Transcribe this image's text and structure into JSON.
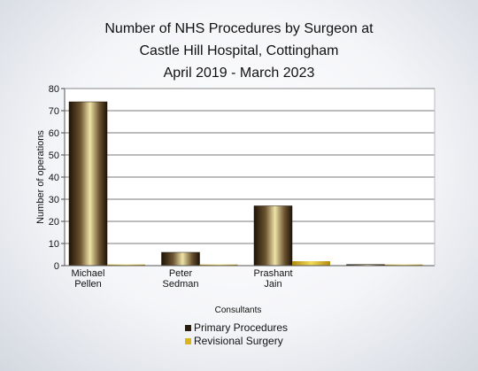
{
  "chart_data": {
    "type": "bar",
    "title_lines": [
      "Number of NHS Procedures by Surgeon at",
      "Castle Hill Hospital, Cottingham",
      "April 2019 - March 2023"
    ],
    "xlabel": "Consultants",
    "ylabel": "Number of operations",
    "categories": [
      [
        "Michael",
        "Pellen"
      ],
      [
        "Peter",
        "Sedman"
      ],
      [
        "Prashant",
        "Jain"
      ],
      [
        "",
        ""
      ]
    ],
    "series": [
      {
        "name": "Primary Procedures",
        "values": [
          74,
          6,
          27,
          0.5
        ],
        "color": "#2a1d0a"
      },
      {
        "name": "Revisional Surgery",
        "values": [
          0.5,
          0.5,
          2,
          0.5
        ],
        "color": "#d9b41a"
      }
    ],
    "yticks": [
      0,
      10,
      20,
      30,
      40,
      50,
      60,
      70,
      80
    ],
    "ylim": [
      0,
      80
    ],
    "grid": true,
    "legend_position": "bottom"
  }
}
